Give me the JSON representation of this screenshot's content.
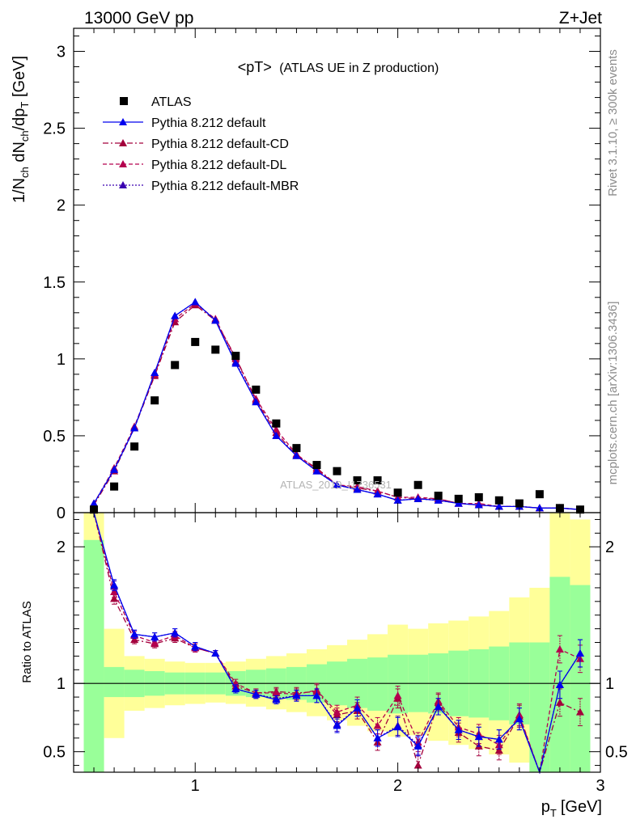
{
  "header": {
    "left": "13000 GeV pp",
    "right": "Z+Jet"
  },
  "side_labels": {
    "rivet": "Rivet 3.1.10, ≥ 300k events",
    "mcplots": "mcplots.cern.ch [arXiv:1306.3436]"
  },
  "chart_data": {
    "type": "scatter",
    "title_main": "<pT>",
    "title_sub": "(ATLAS UE in Z production)",
    "watermark": "ATLAS_2019_I1736531",
    "xlabel_main": "p",
    "xlabel_sub": "T",
    "xlabel_unit": "[GeV]",
    "ylabel_main": {
      "a": "1/N",
      "b": "ch",
      "c": " dN",
      "d": "ch",
      "e": "/dp",
      "f": "T",
      "g": " [GeV]"
    },
    "ylabel_ratio": "Ratio to ATLAS",
    "xlim": [
      0.4,
      3.0
    ],
    "ylim_main": [
      0,
      3.15
    ],
    "ylim_ratio": [
      0.35,
      2.25
    ],
    "x_ticks": [
      {
        "value": 1,
        "label": "1"
      },
      {
        "value": 2,
        "label": "2"
      },
      {
        "value": 3,
        "label": "3"
      }
    ],
    "y_ticks_main": [
      {
        "value": 0,
        "label": "0"
      },
      {
        "value": 0.5,
        "label": "0.5"
      },
      {
        "value": 1,
        "label": "1"
      },
      {
        "value": 1.5,
        "label": "1.5"
      },
      {
        "value": 2,
        "label": "2"
      },
      {
        "value": 2.5,
        "label": "2.5"
      },
      {
        "value": 3,
        "label": "3"
      }
    ],
    "y_ticks_ratio": [
      {
        "value": 0.5,
        "label": "0.5"
      },
      {
        "value": 1,
        "label": "1"
      },
      {
        "value": 2,
        "label": "2"
      }
    ],
    "x": [
      0.5,
      0.6,
      0.7,
      0.8,
      0.9,
      1.0,
      1.1,
      1.2,
      1.3,
      1.4,
      1.5,
      1.6,
      1.7,
      1.8,
      1.9,
      2.0,
      2.1,
      2.2,
      2.3,
      2.4,
      2.5,
      2.6,
      2.7,
      2.8,
      2.9
    ],
    "legend": [
      {
        "label": "ATLAS",
        "color": "#000000",
        "style": "square"
      },
      {
        "label": "Pythia 8.212 default",
        "color": "#0000ee",
        "style": "solid"
      },
      {
        "label": "Pythia 8.212 default-CD",
        "color": "#a3003c",
        "style": "dashdot"
      },
      {
        "label": "Pythia 8.212 default-DL",
        "color": "#b4004e",
        "style": "dashed"
      },
      {
        "label": "Pythia 8.212 default-MBR",
        "color": "#3a00b0",
        "style": "dotted"
      }
    ],
    "data_series": {
      "name": "ATLAS",
      "values": [
        0.02,
        0.17,
        0.43,
        0.73,
        0.96,
        1.11,
        1.06,
        1.02,
        0.8,
        0.58,
        0.42,
        0.31,
        0.27,
        0.21,
        0.21,
        0.13,
        0.18,
        0.11,
        0.09,
        0.1,
        0.08,
        0.06,
        0.12,
        0.03,
        0.02
      ]
    },
    "series": [
      {
        "name": "Pythia 8.212 default",
        "color": "#0000ee",
        "dash": "",
        "values": [
          0.06,
          0.28,
          0.55,
          0.91,
          1.28,
          1.37,
          1.25,
          0.97,
          0.72,
          0.5,
          0.37,
          0.27,
          0.18,
          0.15,
          0.12,
          0.08,
          0.09,
          0.08,
          0.06,
          0.05,
          0.04,
          0.04,
          0.03,
          0.03,
          0.02
        ],
        "ratio": [
          2.9,
          1.72,
          1.36,
          1.34,
          1.37,
          1.27,
          1.22,
          0.96,
          0.92,
          0.88,
          0.91,
          0.91,
          0.69,
          0.82,
          0.6,
          0.68,
          0.54,
          0.83,
          0.66,
          0.61,
          0.59,
          0.74,
          0.2,
          0.99,
          1.22
        ]
      },
      {
        "name": "Pythia 8.212 default-CD",
        "color": "#a3003c",
        "dash": "7,3,2,3",
        "values": [
          0.05,
          0.27,
          0.55,
          0.89,
          1.24,
          1.35,
          1.25,
          1.01,
          0.73,
          0.52,
          0.37,
          0.29,
          0.18,
          0.16,
          0.14,
          0.1,
          0.09,
          0.09,
          0.06,
          0.05,
          0.04,
          0.04,
          0.03,
          0.03,
          0.02
        ],
        "ratio": [
          2.6,
          1.62,
          1.32,
          1.29,
          1.33,
          1.26,
          1.22,
          0.98,
          0.93,
          0.94,
          0.93,
          0.94,
          0.77,
          0.8,
          0.57,
          0.89,
          0.4,
          0.86,
          0.64,
          0.54,
          0.51,
          0.76,
          0.2,
          0.86,
          0.79
        ]
      },
      {
        "name": "Pythia 8.212 default-DL",
        "color": "#b4004e",
        "dash": "5,3",
        "values": [
          0.06,
          0.29,
          0.56,
          0.9,
          1.26,
          1.36,
          1.26,
          1.0,
          0.74,
          0.54,
          0.38,
          0.28,
          0.18,
          0.17,
          0.14,
          0.1,
          0.1,
          0.09,
          0.06,
          0.06,
          0.04,
          0.04,
          0.03,
          0.03,
          0.02
        ],
        "ratio": [
          2.7,
          1.67,
          1.35,
          1.3,
          1.35,
          1.26,
          1.22,
          1.0,
          0.93,
          0.93,
          0.92,
          0.95,
          0.79,
          0.84,
          0.69,
          0.91,
          0.57,
          0.87,
          0.68,
          0.63,
          0.55,
          0.77,
          0.2,
          1.25,
          1.18
        ]
      },
      {
        "name": "Pythia 8.212 default-MBR",
        "color": "#3a00b0",
        "dash": "2,2",
        "values": [
          0.06,
          0.28,
          0.55,
          0.91,
          1.28,
          1.37,
          1.25,
          0.98,
          0.72,
          0.5,
          0.37,
          0.27,
          0.18,
          0.15,
          0.12,
          0.08,
          0.09,
          0.08,
          0.06,
          0.05,
          0.04,
          0.04,
          0.03,
          0.03,
          0.02
        ],
        "ratio": [
          2.9,
          1.71,
          1.36,
          1.34,
          1.37,
          1.27,
          1.22,
          0.96,
          0.92,
          0.89,
          0.91,
          0.91,
          0.7,
          0.82,
          0.6,
          0.69,
          0.55,
          0.83,
          0.66,
          0.61,
          0.59,
          0.74,
          0.2,
          0.99,
          1.22
        ]
      }
    ],
    "ratio_err": [
      0.04,
      0.04,
      0.03,
      0.03,
      0.03,
      0.03,
      0.02,
      0.03,
      0.03,
      0.03,
      0.04,
      0.05,
      0.05,
      0.06,
      0.06,
      0.07,
      0.07,
      0.06,
      0.07,
      0.07,
      0.07,
      0.08,
      0.1,
      0.1,
      0.1
    ],
    "band_inner": [
      [
        0.35,
        2.05
      ],
      [
        0.9,
        1.12
      ],
      [
        0.9,
        1.1
      ],
      [
        0.91,
        1.09
      ],
      [
        0.92,
        1.08
      ],
      [
        0.92,
        1.08
      ],
      [
        0.92,
        1.08
      ],
      [
        0.91,
        1.09
      ],
      [
        0.9,
        1.1
      ],
      [
        0.89,
        1.11
      ],
      [
        0.88,
        1.12
      ],
      [
        0.86,
        1.14
      ],
      [
        0.84,
        1.16
      ],
      [
        0.82,
        1.18
      ],
      [
        0.8,
        1.19
      ],
      [
        0.78,
        1.21
      ],
      [
        0.79,
        1.21
      ],
      [
        0.78,
        1.22
      ],
      [
        0.76,
        1.24
      ],
      [
        0.75,
        1.25
      ],
      [
        0.73,
        1.27
      ],
      [
        0.7,
        1.3
      ],
      [
        0.35,
        1.3
      ],
      [
        0.35,
        1.78
      ],
      [
        0.35,
        1.72
      ]
    ],
    "band_outer": [
      [
        0.35,
        2.25
      ],
      [
        0.6,
        1.4
      ],
      [
        0.8,
        1.2
      ],
      [
        0.82,
        1.18
      ],
      [
        0.84,
        1.16
      ],
      [
        0.85,
        1.15
      ],
      [
        0.86,
        1.15
      ],
      [
        0.85,
        1.16
      ],
      [
        0.83,
        1.18
      ],
      [
        0.81,
        1.2
      ],
      [
        0.79,
        1.22
      ],
      [
        0.76,
        1.25
      ],
      [
        0.73,
        1.28
      ],
      [
        0.69,
        1.32
      ],
      [
        0.65,
        1.36
      ],
      [
        0.61,
        1.43
      ],
      [
        0.62,
        1.4
      ],
      [
        0.58,
        1.44
      ],
      [
        0.55,
        1.46
      ],
      [
        0.52,
        1.49
      ],
      [
        0.48,
        1.53
      ],
      [
        0.42,
        1.63
      ],
      [
        0.35,
        1.7
      ],
      [
        0.35,
        2.25
      ],
      [
        0.35,
        2.2
      ]
    ],
    "band_colors": {
      "inner": "#99ff99",
      "outer": "#ffff99"
    }
  }
}
